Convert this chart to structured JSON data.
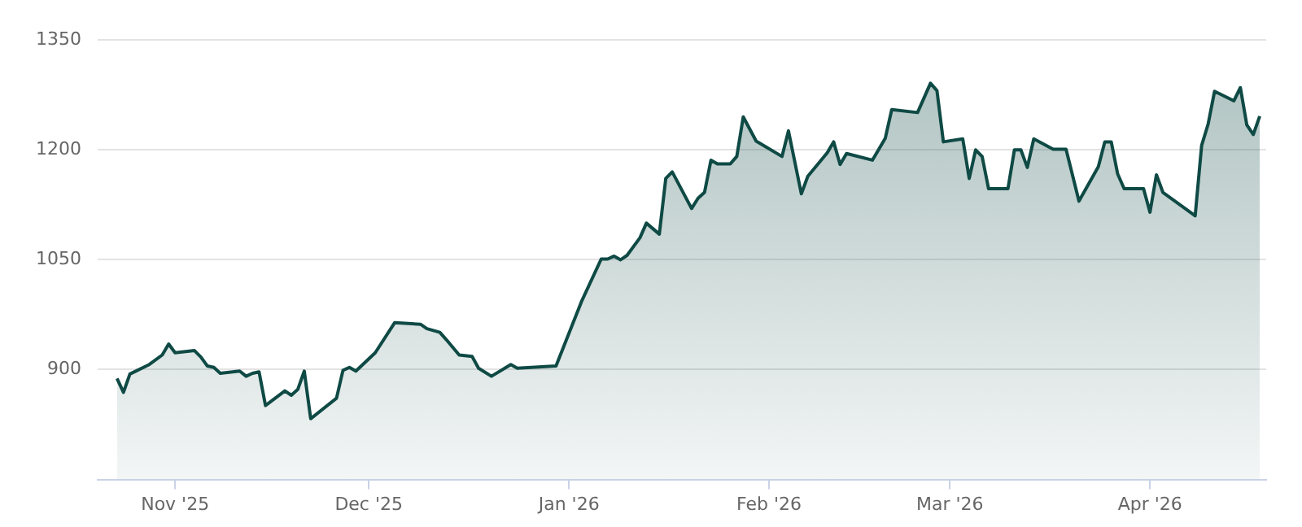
{
  "chart_data": {
    "type": "area",
    "legend": false,
    "grid": "y",
    "marker": "none",
    "line_style": "solid",
    "xlim": [
      "2025-10-20",
      "2026-04-19"
    ],
    "xticks": [
      {
        "value": "2025-11-01",
        "label": "Nov '25"
      },
      {
        "value": "2025-12-01",
        "label": "Dec '25"
      },
      {
        "value": "2026-01-01",
        "label": "Jan '26"
      },
      {
        "value": "2026-02-01",
        "label": "Feb '26"
      },
      {
        "value": "2026-03-01",
        "label": "Mar '26"
      },
      {
        "value": "2026-04-01",
        "label": "Apr '26"
      }
    ],
    "ylim": [
      750,
      1350
    ],
    "yticks": [
      {
        "value": 750,
        "label": null
      },
      900,
      1050,
      1200,
      1350
    ],
    "series": [
      {
        "color": "#0f4a45",
        "x": [
          "2025-10-23",
          "2025-10-24",
          "2025-10-25",
          "2025-10-28",
          "2025-10-30",
          "2025-10-31",
          "2025-11-01",
          "2025-11-04",
          "2025-11-05",
          "2025-11-06",
          "2025-11-07",
          "2025-11-08",
          "2025-11-11",
          "2025-11-12",
          "2025-11-13",
          "2025-11-14",
          "2025-11-15",
          "2025-11-18",
          "2025-11-19",
          "2025-11-20",
          "2025-11-21",
          "2025-11-22",
          "2025-11-26",
          "2025-11-27",
          "2025-11-28",
          "2025-11-29",
          "2025-12-02",
          "2025-12-05",
          "2025-12-09",
          "2025-12-10",
          "2025-12-12",
          "2025-12-13",
          "2025-12-15",
          "2025-12-17",
          "2025-12-18",
          "2025-12-20",
          "2025-12-23",
          "2025-12-24",
          "2025-12-30",
          "2026-01-03",
          "2026-01-06",
          "2026-01-07",
          "2026-01-08",
          "2026-01-09",
          "2026-01-10",
          "2026-01-12",
          "2026-01-13",
          "2026-01-15",
          "2026-01-16",
          "2026-01-17",
          "2026-01-20",
          "2026-01-21",
          "2026-01-22",
          "2026-01-23",
          "2026-01-24",
          "2026-01-26",
          "2026-01-27",
          "2026-01-28",
          "2026-01-30",
          "2026-02-03",
          "2026-02-04",
          "2026-02-06",
          "2026-02-07",
          "2026-02-10",
          "2026-02-11",
          "2026-02-12",
          "2026-02-13",
          "2026-02-17",
          "2026-02-19",
          "2026-02-20",
          "2026-02-24",
          "2026-02-26",
          "2026-02-27",
          "2026-02-28",
          "2026-03-03",
          "2026-03-04",
          "2026-03-05",
          "2026-03-06",
          "2026-03-07",
          "2026-03-10",
          "2026-03-11",
          "2026-03-12",
          "2026-03-13",
          "2026-03-14",
          "2026-03-17",
          "2026-03-19",
          "2026-03-21",
          "2026-03-24",
          "2026-03-25",
          "2026-03-26",
          "2026-03-27",
          "2026-03-28",
          "2026-03-31",
          "2026-04-01",
          "2026-04-02",
          "2026-04-03",
          "2026-04-08",
          "2026-04-09",
          "2026-04-10",
          "2026-04-11",
          "2026-04-14",
          "2026-04-15",
          "2026-04-16",
          "2026-04-17",
          "2026-04-18"
        ],
        "values": [
          888,
          869,
          894,
          907,
          920,
          935,
          923,
          926,
          917,
          905,
          903,
          895,
          898,
          891,
          895,
          897,
          851,
          871,
          865,
          873,
          898,
          833,
          861,
          899,
          903,
          898,
          923,
          964,
          962,
          956,
          951,
          941,
          920,
          918,
          902,
          891,
          907,
          902,
          905,
          994,
          1051,
          1051,
          1055,
          1050,
          1056,
          1080,
          1100,
          1085,
          1161,
          1170,
          1120,
          1134,
          1142,
          1186,
          1181,
          1181,
          1191,
          1245,
          1212,
          1191,
          1226,
          1140,
          1164,
          1196,
          1211,
          1180,
          1195,
          1186,
          1216,
          1255,
          1251,
          1291,
          1281,
          1211,
          1215,
          1161,
          1200,
          1191,
          1147,
          1147,
          1200,
          1200,
          1176,
          1215,
          1201,
          1201,
          1130,
          1177,
          1211,
          1211,
          1167,
          1147,
          1147,
          1115,
          1166,
          1142,
          1110,
          1206,
          1235,
          1280,
          1267,
          1285,
          1234,
          1221,
          1246
        ]
      }
    ]
  }
}
